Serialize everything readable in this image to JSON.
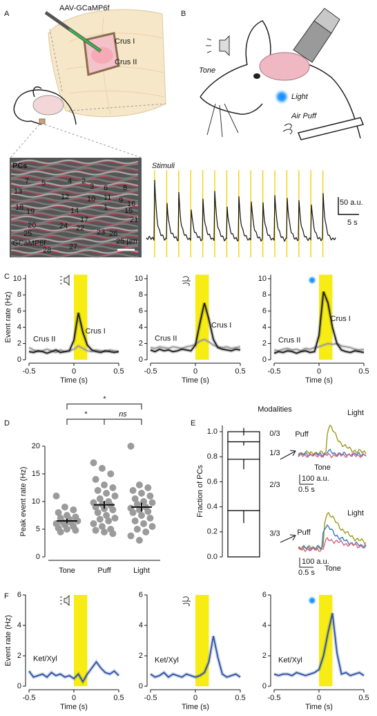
{
  "figure": {
    "panels": [
      "A",
      "B",
      "C",
      "D",
      "E",
      "F"
    ],
    "a": {
      "virus": "AAV-GCaMP6f",
      "regions": [
        "Crus I",
        "Crus II"
      ]
    },
    "b": {
      "stimuli": [
        "Tone",
        "Light",
        "Air Puff"
      ]
    },
    "image": {
      "label": "PCs",
      "indicator": "GCaMP6f",
      "scale": "25 µm",
      "cells": [
        "1",
        "2",
        "3",
        "4",
        "5",
        "6",
        "7",
        "8",
        "9",
        "10",
        "11",
        "12",
        "13",
        "14",
        "15",
        "16",
        "17",
        "18",
        "19",
        "20",
        "21",
        "22",
        "23",
        "24",
        "25",
        "26",
        "27",
        "28"
      ]
    },
    "stimuli_trace": {
      "label": "Stimuli",
      "scale_y": "50 a.u.",
      "scale_x": "5 s"
    },
    "e_traces": {
      "labels": [
        "Light",
        "Puff",
        "Tone"
      ],
      "colors": [
        "#9c9a1f",
        "#3b78b8",
        "#d8637f"
      ],
      "scale_y": "100 a.u.",
      "scale_x": "0.5 s"
    }
  },
  "chart_data": [
    {
      "type": "line",
      "stimulus": "tone",
      "ylabel": "Event rate (Hz)",
      "xlabel": "Time (s)",
      "highlight": [
        0,
        0.15
      ],
      "highlight_color": "#f7ec13",
      "x": [
        -0.5,
        -0.45,
        -0.4,
        -0.35,
        -0.3,
        -0.25,
        -0.2,
        -0.15,
        -0.1,
        -0.05,
        0,
        0.05,
        0.1,
        0.15,
        0.2,
        0.25,
        0.3,
        0.35,
        0.4,
        0.45,
        0.5
      ],
      "xlim": [
        -0.5,
        0.5
      ],
      "xticks": [
        -0.5,
        0,
        0.5
      ],
      "ylim": [
        0,
        10.5
      ],
      "yticks": [
        0,
        2,
        4,
        6,
        8,
        10
      ],
      "series": [
        {
          "name": "Crus I",
          "color": "#1a1a1a",
          "values": [
            1.0,
            0.9,
            1.1,
            1.0,
            0.8,
            1.0,
            1.2,
            0.9,
            1.0,
            1.1,
            2.4,
            5.8,
            3.4,
            1.8,
            1.2,
            1.0,
            0.9,
            1.1,
            1.0,
            0.9,
            1.0
          ]
        },
        {
          "name": "Crus II",
          "color": "#9a9a9a",
          "values": [
            1.5,
            1.2,
            1.0,
            1.1,
            1.3,
            1.1,
            0.9,
            1.2,
            1.0,
            1.1,
            1.3,
            1.7,
            1.4,
            1.1,
            1.0,
            1.2,
            1.1,
            1.0,
            1.2,
            1.1,
            1.0
          ]
        }
      ]
    },
    {
      "type": "line",
      "stimulus": "puff",
      "xlabel": "Time (s)",
      "highlight": [
        0,
        0.15
      ],
      "highlight_color": "#f7ec13",
      "x": [
        -0.5,
        -0.45,
        -0.4,
        -0.35,
        -0.3,
        -0.25,
        -0.2,
        -0.15,
        -0.1,
        -0.05,
        0,
        0.05,
        0.1,
        0.15,
        0.2,
        0.25,
        0.3,
        0.35,
        0.4,
        0.45,
        0.5
      ],
      "xlim": [
        -0.5,
        0.5
      ],
      "xticks": [
        -0.5,
        0,
        0.5
      ],
      "ylim": [
        0,
        10.5
      ],
      "yticks": [
        0,
        2,
        4,
        6,
        8,
        10
      ],
      "series": [
        {
          "name": "Crus I",
          "color": "#1a1a1a",
          "values": [
            1.2,
            1.0,
            1.3,
            1.1,
            1.2,
            1.0,
            1.1,
            1.3,
            1.2,
            1.1,
            1.8,
            4.5,
            7.0,
            5.0,
            2.5,
            1.5,
            1.3,
            1.2,
            1.1,
            1.3,
            1.2
          ]
        },
        {
          "name": "Crus II",
          "color": "#9a9a9a",
          "values": [
            1.5,
            1.4,
            1.6,
            1.5,
            1.4,
            1.6,
            1.5,
            1.4,
            1.6,
            1.7,
            1.9,
            2.3,
            2.5,
            2.2,
            1.8,
            1.6,
            1.5,
            1.6,
            1.4,
            1.5,
            1.6
          ]
        }
      ]
    },
    {
      "type": "line",
      "stimulus": "light",
      "xlabel": "Time (s)",
      "highlight": [
        0,
        0.15
      ],
      "highlight_color": "#f7ec13",
      "x": [
        -0.5,
        -0.45,
        -0.4,
        -0.35,
        -0.3,
        -0.25,
        -0.2,
        -0.15,
        -0.1,
        -0.05,
        0,
        0.05,
        0.1,
        0.15,
        0.2,
        0.25,
        0.3,
        0.35,
        0.4,
        0.45,
        0.5
      ],
      "xlim": [
        -0.5,
        0.5
      ],
      "xticks": [
        -0.5,
        0,
        0.5
      ],
      "ylim": [
        0,
        10.5
      ],
      "yticks": [
        0,
        2,
        4,
        6,
        8,
        10
      ],
      "series": [
        {
          "name": "Crus I",
          "color": "#1a1a1a",
          "values": [
            0.8,
            1.0,
            0.9,
            1.1,
            1.0,
            0.8,
            1.0,
            1.1,
            0.9,
            1.0,
            3.0,
            8.4,
            7.0,
            4.0,
            2.0,
            1.2,
            1.0,
            0.9,
            1.1,
            1.0,
            0.9
          ]
        },
        {
          "name": "Crus II",
          "color": "#9a9a9a",
          "values": [
            1.2,
            1.1,
            1.3,
            1.4,
            1.2,
            1.3,
            1.1,
            1.4,
            1.3,
            1.5,
            1.6,
            1.8,
            2.0,
            1.9,
            2.0,
            1.7,
            1.6,
            1.5,
            1.3,
            1.2,
            1.3
          ]
        }
      ]
    },
    {
      "type": "strip",
      "ylabel": "Peak event rate (Hz)",
      "categories": [
        "Tone",
        "Puff",
        "Light"
      ],
      "ylim": [
        0,
        20
      ],
      "yticks": [
        0,
        5,
        10,
        15,
        20
      ],
      "color": "#9b9b9b",
      "points": [
        [
          11,
          9,
          8.5,
          8,
          7.5,
          7.2,
          7,
          6.8,
          6.5,
          6.3,
          6.2,
          6,
          5.8,
          5.5,
          5.2,
          5,
          4.8,
          4.5
        ],
        [
          17,
          16,
          15,
          14,
          13,
          12.5,
          12,
          11.5,
          11,
          10.5,
          10,
          9.8,
          9.5,
          9.3,
          9,
          8.7,
          8.5,
          8,
          7.5,
          7,
          6.8,
          6.5,
          6,
          5.5,
          5,
          4.8,
          4.5,
          4.2
        ],
        [
          20,
          13,
          12.5,
          12,
          11.5,
          11,
          10.5,
          10,
          9.8,
          9.5,
          9,
          8.8,
          8.5,
          8.2,
          8,
          7.5,
          7,
          6.5,
          6,
          5.5,
          5,
          4.5,
          3.8,
          3
        ]
      ],
      "means": [
        6.5,
        9.4,
        9.0
      ],
      "sems": [
        0.4,
        0.7,
        0.8
      ],
      "significance": [
        {
          "from": "Tone",
          "to": "Light",
          "label": "*"
        },
        {
          "from": "Tone",
          "to": "Puff",
          "label": "*"
        },
        {
          "from": "Puff",
          "to": "Light",
          "label": "ns"
        }
      ]
    },
    {
      "type": "stacked_bar",
      "ylabel": "Fraction of PCs",
      "legend_title": "Modalities",
      "ylim": [
        0,
        1.05
      ],
      "yticks": [
        {
          "value": 0,
          "label": "0.0"
        },
        0.2,
        0.4,
        0.6,
        0.8,
        {
          "value": 1,
          "label": "1.0"
        }
      ],
      "series": [
        {
          "name": "3/3",
          "values": [
            0.37
          ],
          "errors": [
            0.1
          ]
        },
        {
          "name": "2/3",
          "values": [
            0.41
          ],
          "errors": [
            0.08
          ]
        },
        {
          "name": "1/3",
          "values": [
            0.14
          ],
          "errors": [
            0.03
          ]
        },
        {
          "name": "0/3",
          "values": [
            0.08
          ],
          "errors": [
            0.03
          ]
        }
      ]
    },
    {
      "type": "line",
      "stimulus": "tone",
      "ylabel": "Event rate (Hz)",
      "xlabel": "Time (s)",
      "highlight": [
        0,
        0.15
      ],
      "highlight_color": "#f7ec13",
      "x": [
        -0.5,
        -0.45,
        -0.4,
        -0.35,
        -0.3,
        -0.25,
        -0.2,
        -0.15,
        -0.1,
        -0.05,
        0,
        0.05,
        0.1,
        0.15,
        0.2,
        0.25,
        0.3,
        0.35,
        0.4,
        0.45,
        0.5
      ],
      "xlim": [
        -0.5,
        0.5
      ],
      "xticks": [
        -0.5,
        0,
        0.5
      ],
      "ylim": [
        0,
        6
      ],
      "yticks": [
        0,
        2,
        4,
        6
      ],
      "series": [
        {
          "name": "Ket/Xyl",
          "color": "#2d4fa3",
          "values": [
            1.0,
            0.6,
            0.7,
            0.8,
            0.6,
            0.9,
            0.7,
            0.8,
            0.6,
            0.7,
            0.5,
            0.8,
            0.3,
            0.8,
            1.2,
            1.6,
            1.2,
            0.9,
            0.8,
            1.0,
            0.7
          ]
        }
      ]
    },
    {
      "type": "line",
      "stimulus": "puff",
      "xlabel": "Time (s)",
      "highlight": [
        0,
        0.15
      ],
      "highlight_color": "#f7ec13",
      "x": [
        -0.5,
        -0.45,
        -0.4,
        -0.35,
        -0.3,
        -0.25,
        -0.2,
        -0.15,
        -0.1,
        -0.05,
        0,
        0.05,
        0.1,
        0.15,
        0.2,
        0.25,
        0.3,
        0.35,
        0.4,
        0.45,
        0.5
      ],
      "xlim": [
        -0.5,
        0.5
      ],
      "xticks": [
        -0.5,
        0,
        0.5
      ],
      "ylim": [
        0,
        6
      ],
      "yticks": [
        0,
        2,
        4,
        6
      ],
      "series": [
        {
          "name": "Ket/Xyl",
          "color": "#2d4fa3",
          "values": [
            0.8,
            0.6,
            0.7,
            0.9,
            0.6,
            0.8,
            0.7,
            0.6,
            0.8,
            0.7,
            0.6,
            0.7,
            0.9,
            1.6,
            3.3,
            1.9,
            0.8,
            0.6,
            0.7,
            0.8,
            0.6
          ]
        }
      ]
    },
    {
      "type": "line",
      "stimulus": "light",
      "xlabel": "Time (s)",
      "highlight": [
        0,
        0.15
      ],
      "highlight_color": "#f7ec13",
      "x": [
        -0.5,
        -0.45,
        -0.4,
        -0.35,
        -0.3,
        -0.25,
        -0.2,
        -0.15,
        -0.1,
        -0.05,
        0,
        0.05,
        0.1,
        0.15,
        0.2,
        0.25,
        0.3,
        0.35,
        0.4,
        0.45,
        0.5
      ],
      "xlim": [
        -0.5,
        0.5
      ],
      "xticks": [
        -0.5,
        0,
        0.5
      ],
      "ylim": [
        0,
        6
      ],
      "yticks": [
        0,
        2,
        4,
        6
      ],
      "series": [
        {
          "name": "Ket/Xyl",
          "color": "#2d4fa3",
          "values": [
            0.8,
            0.7,
            0.8,
            0.8,
            0.7,
            0.9,
            0.8,
            0.7,
            0.8,
            0.9,
            1.1,
            2.0,
            3.5,
            4.8,
            2.2,
            0.8,
            0.9,
            0.7,
            0.8,
            0.9,
            0.7
          ]
        }
      ]
    }
  ]
}
